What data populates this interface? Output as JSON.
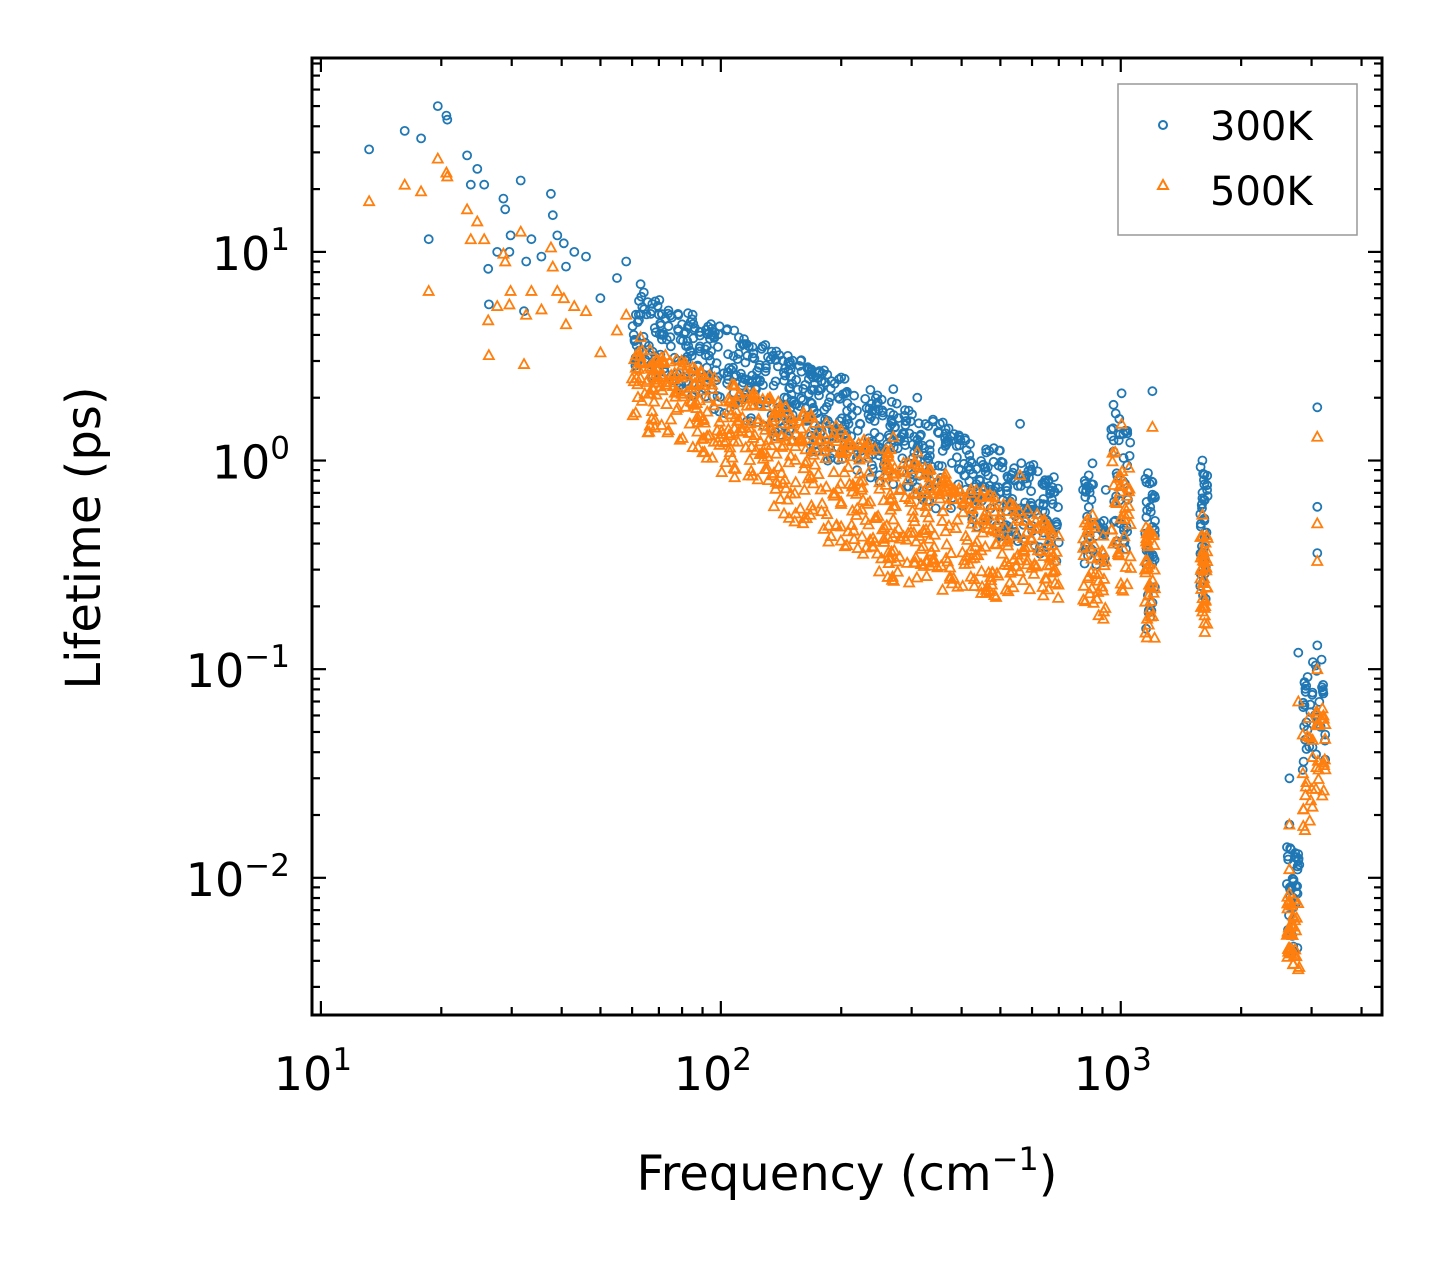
{
  "chart_data": {
    "type": "scatter",
    "xscale": "log",
    "yscale": "log",
    "xlim": [
      9.5,
      4500
    ],
    "ylim": [
      0.0022,
      85
    ],
    "xlabel": "Frequency (cm",
    "xlabel_sup": "−1",
    "xlabel_end": ")",
    "ylabel": "Lifetime (ps)",
    "grid": false,
    "legend_position": "top-right",
    "x_ticks": [
      {
        "value": 10,
        "base": "10",
        "exp": "1"
      },
      {
        "value": 100,
        "base": "10",
        "exp": "2"
      },
      {
        "value": 1000,
        "base": "10",
        "exp": "3"
      }
    ],
    "y_ticks": [
      {
        "value": 10,
        "base": "10",
        "exp": "1"
      },
      {
        "value": 1,
        "base": "10",
        "exp": "0"
      },
      {
        "value": 0.1,
        "base": "10",
        "exp": "−1"
      },
      {
        "value": 0.01,
        "base": "10",
        "exp": "−2"
      }
    ],
    "series": [
      {
        "name": "300K",
        "marker": "circle",
        "color": "#1f77b4",
        "points": [
          [
            13.2,
            31
          ],
          [
            16.2,
            38
          ],
          [
            17.8,
            35
          ],
          [
            18.6,
            11.5
          ],
          [
            19.6,
            50
          ],
          [
            20.6,
            45
          ],
          [
            20.7,
            43
          ],
          [
            23.2,
            29
          ],
          [
            23.7,
            21
          ],
          [
            24.6,
            25
          ],
          [
            25.6,
            21
          ],
          [
            26.2,
            8.3
          ],
          [
            26.3,
            5.6
          ],
          [
            27.6,
            10
          ],
          [
            28.6,
            18
          ],
          [
            28.9,
            16
          ],
          [
            29.6,
            10
          ],
          [
            29.8,
            12
          ],
          [
            31.6,
            22
          ],
          [
            32.2,
            5.2
          ],
          [
            32.6,
            9
          ],
          [
            33.6,
            11.5
          ],
          [
            35.6,
            9.5
          ],
          [
            37.6,
            19
          ],
          [
            38,
            15
          ],
          [
            39,
            12
          ],
          [
            40.5,
            11
          ],
          [
            41,
            8.5
          ],
          [
            43,
            10
          ],
          [
            46,
            9.5
          ],
          [
            50,
            6
          ],
          [
            55,
            7.5
          ],
          [
            58,
            9
          ],
          [
            63,
            7
          ],
          [
            70,
            5
          ],
          [
            80,
            4.5
          ],
          [
            85,
            5
          ],
          [
            95,
            4
          ],
          [
            108,
            4.2
          ],
          [
            120,
            3.5
          ],
          [
            140,
            3.2
          ],
          [
            165,
            2.8
          ],
          [
            200,
            2.5
          ],
          [
            270,
            2.2
          ],
          [
            310,
            2.0
          ],
          [
            420,
            1.2
          ],
          [
            560,
            1.5
          ],
          [
            850,
            0.97
          ],
          [
            1005,
            2.1
          ],
          [
            1200,
            2.15
          ],
          [
            1600,
            1.0
          ],
          [
            2640,
            0.03
          ],
          [
            2640,
            0.018
          ],
          [
            2780,
            0.12
          ],
          [
            3100,
            1.8
          ],
          [
            3100,
            0.6
          ],
          [
            3100,
            0.36
          ],
          [
            3100,
            0.13
          ]
        ],
        "bands": [
          {
            "x": [
              60,
              280
            ],
            "y_top": [
              6.8,
              1.9
            ],
            "y_bottom": [
              2.6,
              0.7
            ]
          },
          {
            "x": [
              280,
              700
            ],
            "y_top": [
              1.9,
              0.85
            ],
            "y_bottom": [
              0.7,
              0.32
            ]
          },
          {
            "x": [
              800,
              920
            ],
            "y_top": [
              0.9,
              0.8
            ],
            "y_bottom": [
              0.32,
              0.3
            ]
          },
          {
            "x": [
              940,
              1060
            ],
            "y_top": [
              2.0,
              1.3
            ],
            "y_bottom": [
              0.4,
              0.35
            ]
          },
          {
            "x": [
              1150,
              1220
            ],
            "y_top": [
              1.0,
              0.8
            ],
            "y_bottom": [
              0.15,
              0.2
            ]
          },
          {
            "x": [
              1580,
              1650
            ],
            "y_top": [
              0.95,
              0.9
            ],
            "y_bottom": [
              0.2,
              0.2
            ]
          },
          {
            "x": [
              2600,
              2800
            ],
            "y_top": [
              0.016,
              0.015
            ],
            "y_bottom": [
              0.0045,
              0.004
            ]
          },
          {
            "x": [
              2850,
              3250
            ],
            "y_top": [
              0.1,
              0.12
            ],
            "y_bottom": [
              0.025,
              0.03
            ]
          }
        ]
      },
      {
        "name": "500K",
        "marker": "triangle",
        "color": "#ff7f0e",
        "points": [
          [
            13.2,
            17.5
          ],
          [
            16.2,
            21
          ],
          [
            17.8,
            19.5
          ],
          [
            18.6,
            6.5
          ],
          [
            19.6,
            28
          ],
          [
            20.6,
            24
          ],
          [
            20.7,
            23
          ],
          [
            23.2,
            16
          ],
          [
            23.7,
            11.5
          ],
          [
            24.6,
            14
          ],
          [
            25.6,
            11.5
          ],
          [
            26.2,
            4.7
          ],
          [
            26.3,
            3.2
          ],
          [
            27.6,
            5.5
          ],
          [
            28.6,
            9.8
          ],
          [
            28.9,
            9
          ],
          [
            29.6,
            5.6
          ],
          [
            29.8,
            6.5
          ],
          [
            31.6,
            12.5
          ],
          [
            32.2,
            2.9
          ],
          [
            32.6,
            5
          ],
          [
            33.6,
            6.5
          ],
          [
            35.6,
            5.3
          ],
          [
            37.6,
            10.5
          ],
          [
            38,
            8.5
          ],
          [
            39,
            6.5
          ],
          [
            40.5,
            6
          ],
          [
            41,
            4.5
          ],
          [
            43,
            5.5
          ],
          [
            46,
            5.2
          ],
          [
            50,
            3.3
          ],
          [
            55,
            4.2
          ],
          [
            58,
            5
          ],
          [
            63,
            3.9
          ],
          [
            70,
            2.8
          ],
          [
            80,
            2.5
          ],
          [
            85,
            2.8
          ],
          [
            95,
            2.2
          ],
          [
            108,
            2.3
          ],
          [
            120,
            2
          ],
          [
            140,
            1.8
          ],
          [
            165,
            1.6
          ],
          [
            200,
            1.4
          ],
          [
            270,
            1.3
          ],
          [
            310,
            1.1
          ],
          [
            420,
            0.7
          ],
          [
            560,
            0.85
          ],
          [
            850,
            0.55
          ],
          [
            1005,
            1.5
          ],
          [
            1200,
            1.45
          ],
          [
            1600,
            0.55
          ],
          [
            2640,
            0.018
          ],
          [
            2640,
            0.011
          ],
          [
            2780,
            0.07
          ],
          [
            3100,
            1.3
          ],
          [
            3100,
            0.5
          ],
          [
            3100,
            0.33
          ],
          [
            3100,
            0.1
          ]
        ],
        "bands": [
          {
            "x": [
              60,
              280
            ],
            "y_top": [
              3.8,
              1.1
            ],
            "y_bottom": [
              1.5,
              0.25
            ]
          },
          {
            "x": [
              280,
              700
            ],
            "y_top": [
              1.1,
              0.5
            ],
            "y_bottom": [
              0.25,
              0.2
            ]
          },
          {
            "x": [
              800,
              920
            ],
            "y_top": [
              0.55,
              0.45
            ],
            "y_bottom": [
              0.2,
              0.15
            ]
          },
          {
            "x": [
              940,
              1060
            ],
            "y_top": [
              1.3,
              0.9
            ],
            "y_bottom": [
              0.25,
              0.2
            ]
          },
          {
            "x": [
              1150,
              1220
            ],
            "y_top": [
              0.5,
              0.45
            ],
            "y_bottom": [
              0.12,
              0.13
            ]
          },
          {
            "x": [
              1580,
              1650
            ],
            "y_top": [
              0.5,
              0.45
            ],
            "y_bottom": [
              0.15,
              0.15
            ]
          },
          {
            "x": [
              2600,
              2800
            ],
            "y_top": [
              0.009,
              0.008
            ],
            "y_bottom": [
              0.0035,
              0.0031
            ]
          },
          {
            "x": [
              2850,
              3250
            ],
            "y_top": [
              0.055,
              0.07
            ],
            "y_bottom": [
              0.016,
              0.025
            ]
          }
        ]
      }
    ]
  }
}
